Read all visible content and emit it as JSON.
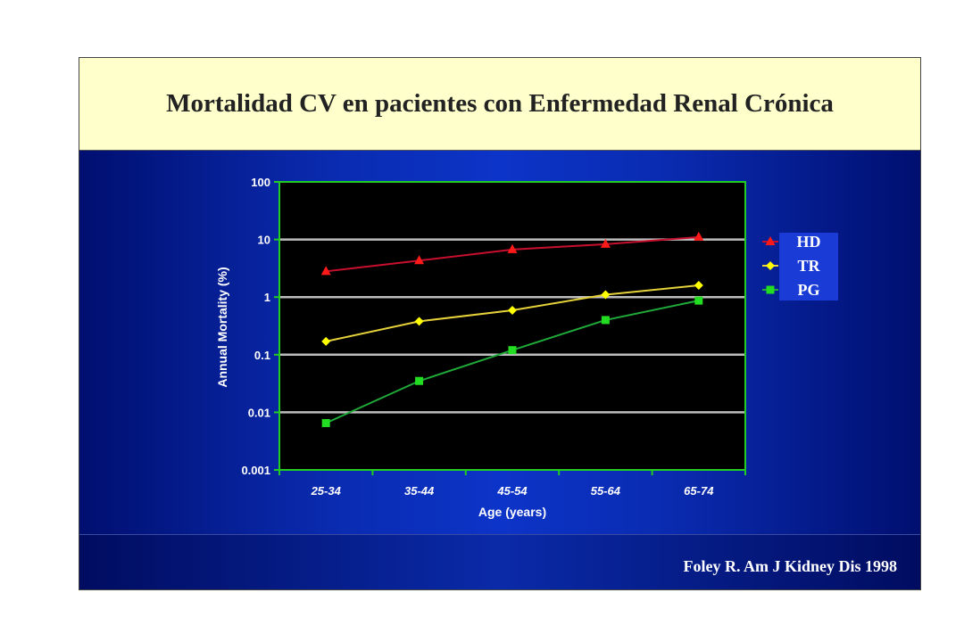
{
  "slide": {
    "title": "Mortalidad CV en pacientes con Enfermedad Renal Crónica",
    "citation": "Foley R. Am J Kidney Dis 1998"
  },
  "chart_data": {
    "type": "line",
    "title": "",
    "xlabel": "Age (years)",
    "ylabel": "Annual Mortality (%)",
    "y_scale": "log",
    "ylim": [
      0.001,
      100
    ],
    "y_ticks": [
      "0.001",
      "0.01",
      "0.1",
      "1",
      "10",
      "100"
    ],
    "y_tick_values": [
      0.001,
      0.01,
      0.1,
      1,
      10,
      100
    ],
    "categories": [
      "25-34",
      "35-44",
      "45-54",
      "55-64",
      "65-74"
    ],
    "grid": true,
    "legend_position": "right",
    "series": [
      {
        "name": "HD",
        "marker": "triangle",
        "color": "#ff1a1a",
        "line_color": "#c8102e",
        "values": [
          2.8,
          4.3,
          6.7,
          8.3,
          11.0
        ]
      },
      {
        "name": "TR",
        "marker": "diamond",
        "color": "#ffff00",
        "line_color": "#e6d23a",
        "values": [
          0.17,
          0.38,
          0.59,
          1.1,
          1.6
        ]
      },
      {
        "name": "PG",
        "marker": "square",
        "color": "#22dd22",
        "line_color": "#1faa3a",
        "values": [
          0.0065,
          0.035,
          0.12,
          0.4,
          0.87
        ]
      }
    ]
  }
}
